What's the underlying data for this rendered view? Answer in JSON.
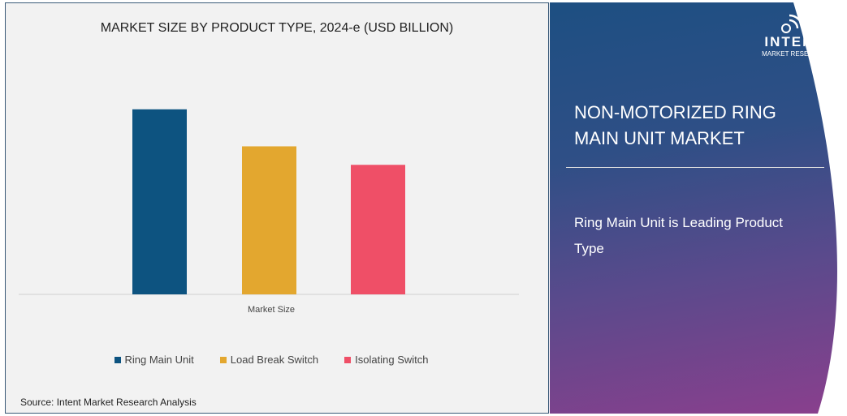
{
  "chart_data": {
    "type": "bar",
    "title": "MARKET SIZE BY PRODUCT TYPE, 2024-e (USD BILLION)",
    "categories": [
      "Market Size"
    ],
    "series": [
      {
        "name": "Ring Main Unit",
        "values": [
          1.0
        ],
        "color": "#0d5380"
      },
      {
        "name": "Load Break Switch",
        "values": [
          0.8
        ],
        "color": "#e3a72f"
      },
      {
        "name": "Isolating Switch",
        "values": [
          0.7
        ],
        "color": "#ef4f67"
      }
    ],
    "value_note": "relative bar heights; no value axis printed",
    "ylim": [
      0,
      1.1
    ],
    "grid": false,
    "legend": "bottom",
    "source": "Source:  Intent Market Research Analysis"
  },
  "panel": {
    "logo_name": "INTENT",
    "logo_sub": "MARKET RESEARCH",
    "title": "NON-MOTORIZED RING MAIN UNIT MARKET",
    "subtitle": "Ring Main Unit is Leading Product Type"
  }
}
